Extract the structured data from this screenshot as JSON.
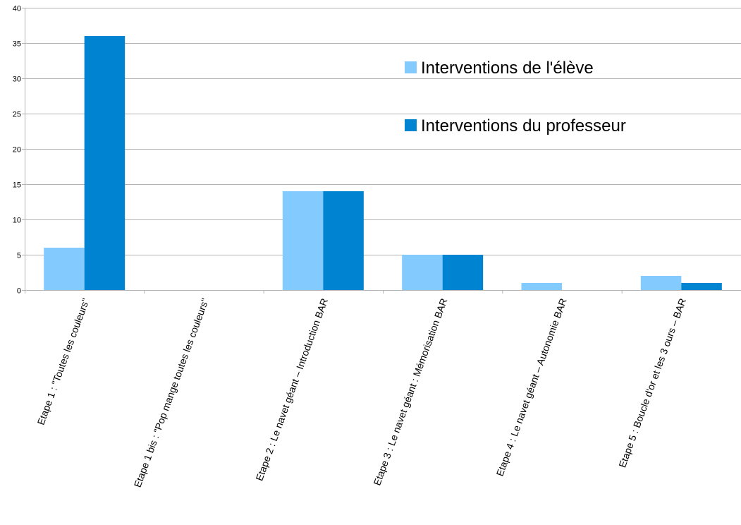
{
  "chart_data": {
    "type": "bar",
    "categories": [
      "Etape 1 : \"Toutes les couleurs\"",
      "Etape 1 bis : \"Pop mange toutes les couleurs\"",
      "Etape 2 : Le navet géant – Introduction BAR",
      "Etape 3 : Le navet géant : Mémorisation BAR",
      "Etape 4 : Le navet géant – Autonomie BAR",
      "Etape 5 : Boucle d'or et les 3 ours – BAR"
    ],
    "series": [
      {
        "name": "Interventions de l'élève",
        "values": [
          6,
          0,
          14,
          5,
          1,
          2
        ],
        "color": "#83caff"
      },
      {
        "name": "Interventions du professeur",
        "values": [
          36,
          0,
          14,
          5,
          0,
          1
        ],
        "color": "#0084d1"
      }
    ],
    "title": "",
    "xlabel": "",
    "ylabel": "",
    "ylim": [
      0,
      40
    ],
    "yticks": [
      0,
      5,
      10,
      15,
      20,
      25,
      30,
      35,
      40
    ],
    "grid": true,
    "legend_position": "top-right"
  }
}
